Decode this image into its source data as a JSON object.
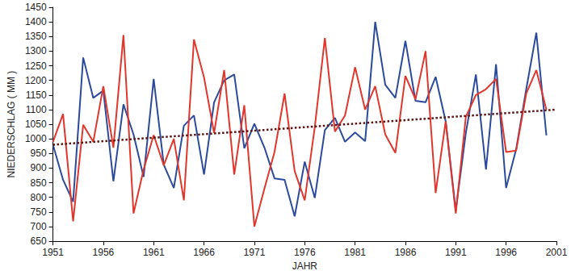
{
  "chart_data": {
    "type": "line",
    "x_label": "JAHR",
    "y_label": "NIEDERSCHLAG ( MM )",
    "x": [
      1951,
      1952,
      1953,
      1954,
      1955,
      1956,
      1957,
      1958,
      1959,
      1960,
      1961,
      1962,
      1963,
      1964,
      1965,
      1966,
      1967,
      1968,
      1969,
      1970,
      1971,
      1972,
      1973,
      1974,
      1975,
      1976,
      1977,
      1978,
      1979,
      1980,
      1981,
      1982,
      1983,
      1984,
      1985,
      1986,
      1987,
      1988,
      1989,
      1990,
      1991,
      1992,
      1993,
      1994,
      1995,
      1996,
      1997,
      1998,
      1999,
      2000
    ],
    "series": [
      {
        "color": "#2b4a9c",
        "marker": "none",
        "line_style": "solid",
        "values": [
          980,
          860,
          785,
          1278,
          1140,
          1165,
          855,
          1118,
          1015,
          870,
          1205,
          912,
          832,
          1045,
          1080,
          878,
          1125,
          1200,
          1220,
          968,
          1052,
          970,
          865,
          860,
          735,
          922,
          798,
          1030,
          1072,
          990,
          1022,
          992,
          1400,
          1185,
          1140,
          1335,
          1130,
          1125,
          1212,
          1060,
          755,
          1020,
          1220,
          895,
          1255,
          832,
          965,
          1170,
          1363,
          1012
        ]
      },
      {
        "color": "#e0362c",
        "marker": "none",
        "line_style": "solid",
        "values": [
          990,
          1085,
          718,
          1048,
          990,
          1180,
          970,
          1355,
          745,
          895,
          1013,
          910,
          1000,
          790,
          1340,
          1210,
          1020,
          1235,
          878,
          1115,
          700,
          830,
          955,
          1155,
          890,
          790,
          1040,
          1345,
          1025,
          1080,
          1245,
          1100,
          1180,
          1015,
          952,
          1215,
          1135,
          1300,
          815,
          1060,
          745,
          1075,
          1150,
          1170,
          1205,
          955,
          960,
          1155,
          1235,
          1100
        ]
      },
      {
        "color": "#5a1414",
        "marker": "none",
        "line_style": "dotted",
        "x": [
          1951,
          2001
        ],
        "values": [
          980,
          1100
        ]
      }
    ],
    "xlim": [
      1951,
      2001
    ],
    "xticks": [
      1951,
      1956,
      1961,
      1966,
      1971,
      1976,
      1981,
      1986,
      1991,
      1996,
      2001
    ],
    "ylim": [
      650,
      1450
    ],
    "yticks": [
      650,
      700,
      750,
      800,
      850,
      900,
      950,
      1000,
      1050,
      1100,
      1150,
      1200,
      1250,
      1300,
      1350,
      1400,
      1450
    ],
    "grid": false
  }
}
